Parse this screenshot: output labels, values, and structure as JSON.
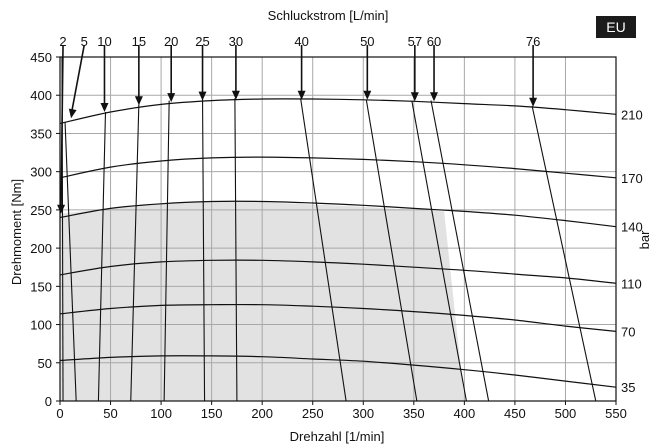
{
  "badge": "EU",
  "chart_data": {
    "type": "line",
    "title": "",
    "xlabel": "Drehzahl [1/min]",
    "ylabel": "Drehmoment [Nm]",
    "top_label": "Schluckstrom [L/min]",
    "right_label": "bar",
    "xlim": [
      0,
      550
    ],
    "ylim": [
      0,
      450
    ],
    "xticks": [
      0,
      50,
      100,
      150,
      200,
      250,
      300,
      350,
      400,
      450,
      500,
      550
    ],
    "yticks": [
      0,
      50,
      100,
      150,
      200,
      250,
      300,
      350,
      400,
      450
    ],
    "grid": true,
    "grid_color": "#a8a8a8",
    "shaded_region_color": "#e2e2e2",
    "shaded_region": [
      [
        0,
        0
      ],
      [
        0,
        245
      ],
      [
        50,
        252
      ],
      [
        100,
        258
      ],
      [
        150,
        261
      ],
      [
        200,
        260
      ],
      [
        250,
        257
      ],
      [
        300,
        254
      ],
      [
        350,
        250
      ],
      [
        380,
        248
      ],
      [
        400,
        0
      ]
    ],
    "pressure_curves": [
      {
        "label": "210",
        "points": [
          [
            0,
            363
          ],
          [
            50,
            378
          ],
          [
            100,
            388
          ],
          [
            150,
            393
          ],
          [
            200,
            395
          ],
          [
            250,
            395
          ],
          [
            300,
            394
          ],
          [
            350,
            392
          ],
          [
            400,
            389
          ],
          [
            450,
            386
          ],
          [
            500,
            381
          ],
          [
            550,
            375
          ]
        ]
      },
      {
        "label": "170",
        "points": [
          [
            0,
            292
          ],
          [
            50,
            306
          ],
          [
            100,
            314
          ],
          [
            150,
            318
          ],
          [
            200,
            319
          ],
          [
            250,
            318
          ],
          [
            300,
            316
          ],
          [
            350,
            313
          ],
          [
            400,
            309
          ],
          [
            450,
            304
          ],
          [
            500,
            298
          ],
          [
            550,
            292
          ]
        ]
      },
      {
        "label": "140",
        "points": [
          [
            0,
            240
          ],
          [
            50,
            252
          ],
          [
            100,
            258
          ],
          [
            150,
            261
          ],
          [
            200,
            261
          ],
          [
            250,
            259
          ],
          [
            300,
            256
          ],
          [
            350,
            252
          ],
          [
            400,
            248
          ],
          [
            450,
            243
          ],
          [
            500,
            236
          ],
          [
            550,
            228
          ]
        ]
      },
      {
        "label": "110",
        "points": [
          [
            0,
            165
          ],
          [
            50,
            176
          ],
          [
            100,
            182
          ],
          [
            150,
            184
          ],
          [
            200,
            184
          ],
          [
            250,
            182
          ],
          [
            300,
            179
          ],
          [
            350,
            175
          ],
          [
            400,
            171
          ],
          [
            450,
            166
          ],
          [
            500,
            161
          ],
          [
            550,
            154
          ]
        ]
      },
      {
        "label": "70",
        "points": [
          [
            0,
            114
          ],
          [
            50,
            121
          ],
          [
            100,
            125
          ],
          [
            150,
            126
          ],
          [
            200,
            126
          ],
          [
            250,
            124
          ],
          [
            300,
            121
          ],
          [
            350,
            117
          ],
          [
            400,
            112
          ],
          [
            450,
            106
          ],
          [
            500,
            98
          ],
          [
            550,
            91
          ]
        ]
      },
      {
        "label": "35",
        "points": [
          [
            0,
            53
          ],
          [
            50,
            57
          ],
          [
            100,
            59
          ],
          [
            150,
            59
          ],
          [
            200,
            58
          ],
          [
            250,
            55
          ],
          [
            300,
            52
          ],
          [
            350,
            47
          ],
          [
            400,
            41
          ],
          [
            450,
            34
          ],
          [
            500,
            26
          ],
          [
            550,
            18
          ]
        ]
      }
    ],
    "flow_lines": [
      {
        "label": "2",
        "top": [
          2,
          450
        ],
        "bottom": [
          3,
          0
        ]
      },
      {
        "label": "5",
        "top": [
          5,
          365
        ],
        "bottom": [
          16,
          0
        ]
      },
      {
        "label": "10",
        "top": [
          45,
          378
        ],
        "bottom": [
          38,
          0
        ]
      },
      {
        "label": "15",
        "top": [
          78,
          388
        ],
        "bottom": [
          70,
          0
        ]
      },
      {
        "label": "20",
        "top": [
          108,
          393
        ],
        "bottom": [
          103,
          0
        ]
      },
      {
        "label": "25",
        "top": [
          141,
          395
        ],
        "bottom": [
          143,
          0
        ]
      },
      {
        "label": "30",
        "top": [
          173,
          396
        ],
        "bottom": [
          175,
          0
        ]
      },
      {
        "label": "40",
        "top": [
          238,
          396
        ],
        "bottom": [
          283,
          0
        ]
      },
      {
        "label": "50",
        "top": [
          303,
          394
        ],
        "bottom": [
          353,
          0
        ]
      },
      {
        "label": "57",
        "top": [
          348,
          393
        ],
        "bottom": [
          402,
          0
        ]
      },
      {
        "label": "60",
        "top": [
          367,
          393
        ],
        "bottom": [
          424,
          0
        ]
      },
      {
        "label": "76",
        "top": [
          467,
          386
        ],
        "bottom": [
          530,
          0
        ]
      }
    ],
    "arrows": [
      {
        "label": "2",
        "from": [
          3,
          450
        ],
        "to": [
          1,
          245
        ]
      },
      {
        "label": "5",
        "from": [
          24,
          450
        ],
        "to": [
          11,
          370
        ]
      },
      {
        "label": "10",
        "from": [
          44,
          450
        ],
        "to": [
          44,
          378
        ]
      },
      {
        "label": "15",
        "from": [
          78,
          450
        ],
        "to": [
          78,
          387
        ]
      },
      {
        "label": "20",
        "from": [
          110,
          450
        ],
        "to": [
          110,
          391
        ]
      },
      {
        "label": "25",
        "from": [
          141,
          450
        ],
        "to": [
          141,
          393
        ]
      },
      {
        "label": "30",
        "from": [
          174,
          450
        ],
        "to": [
          174,
          394
        ]
      },
      {
        "label": "40",
        "from": [
          239,
          450
        ],
        "to": [
          239,
          394
        ]
      },
      {
        "label": "50",
        "from": [
          304,
          450
        ],
        "to": [
          304,
          394
        ]
      },
      {
        "label": "57",
        "from": [
          351,
          450
        ],
        "to": [
          351,
          392
        ]
      },
      {
        "label": "60",
        "from": [
          370,
          450
        ],
        "to": [
          370,
          392
        ]
      },
      {
        "label": "76",
        "from": [
          468,
          450
        ],
        "to": [
          468,
          385
        ]
      }
    ]
  }
}
